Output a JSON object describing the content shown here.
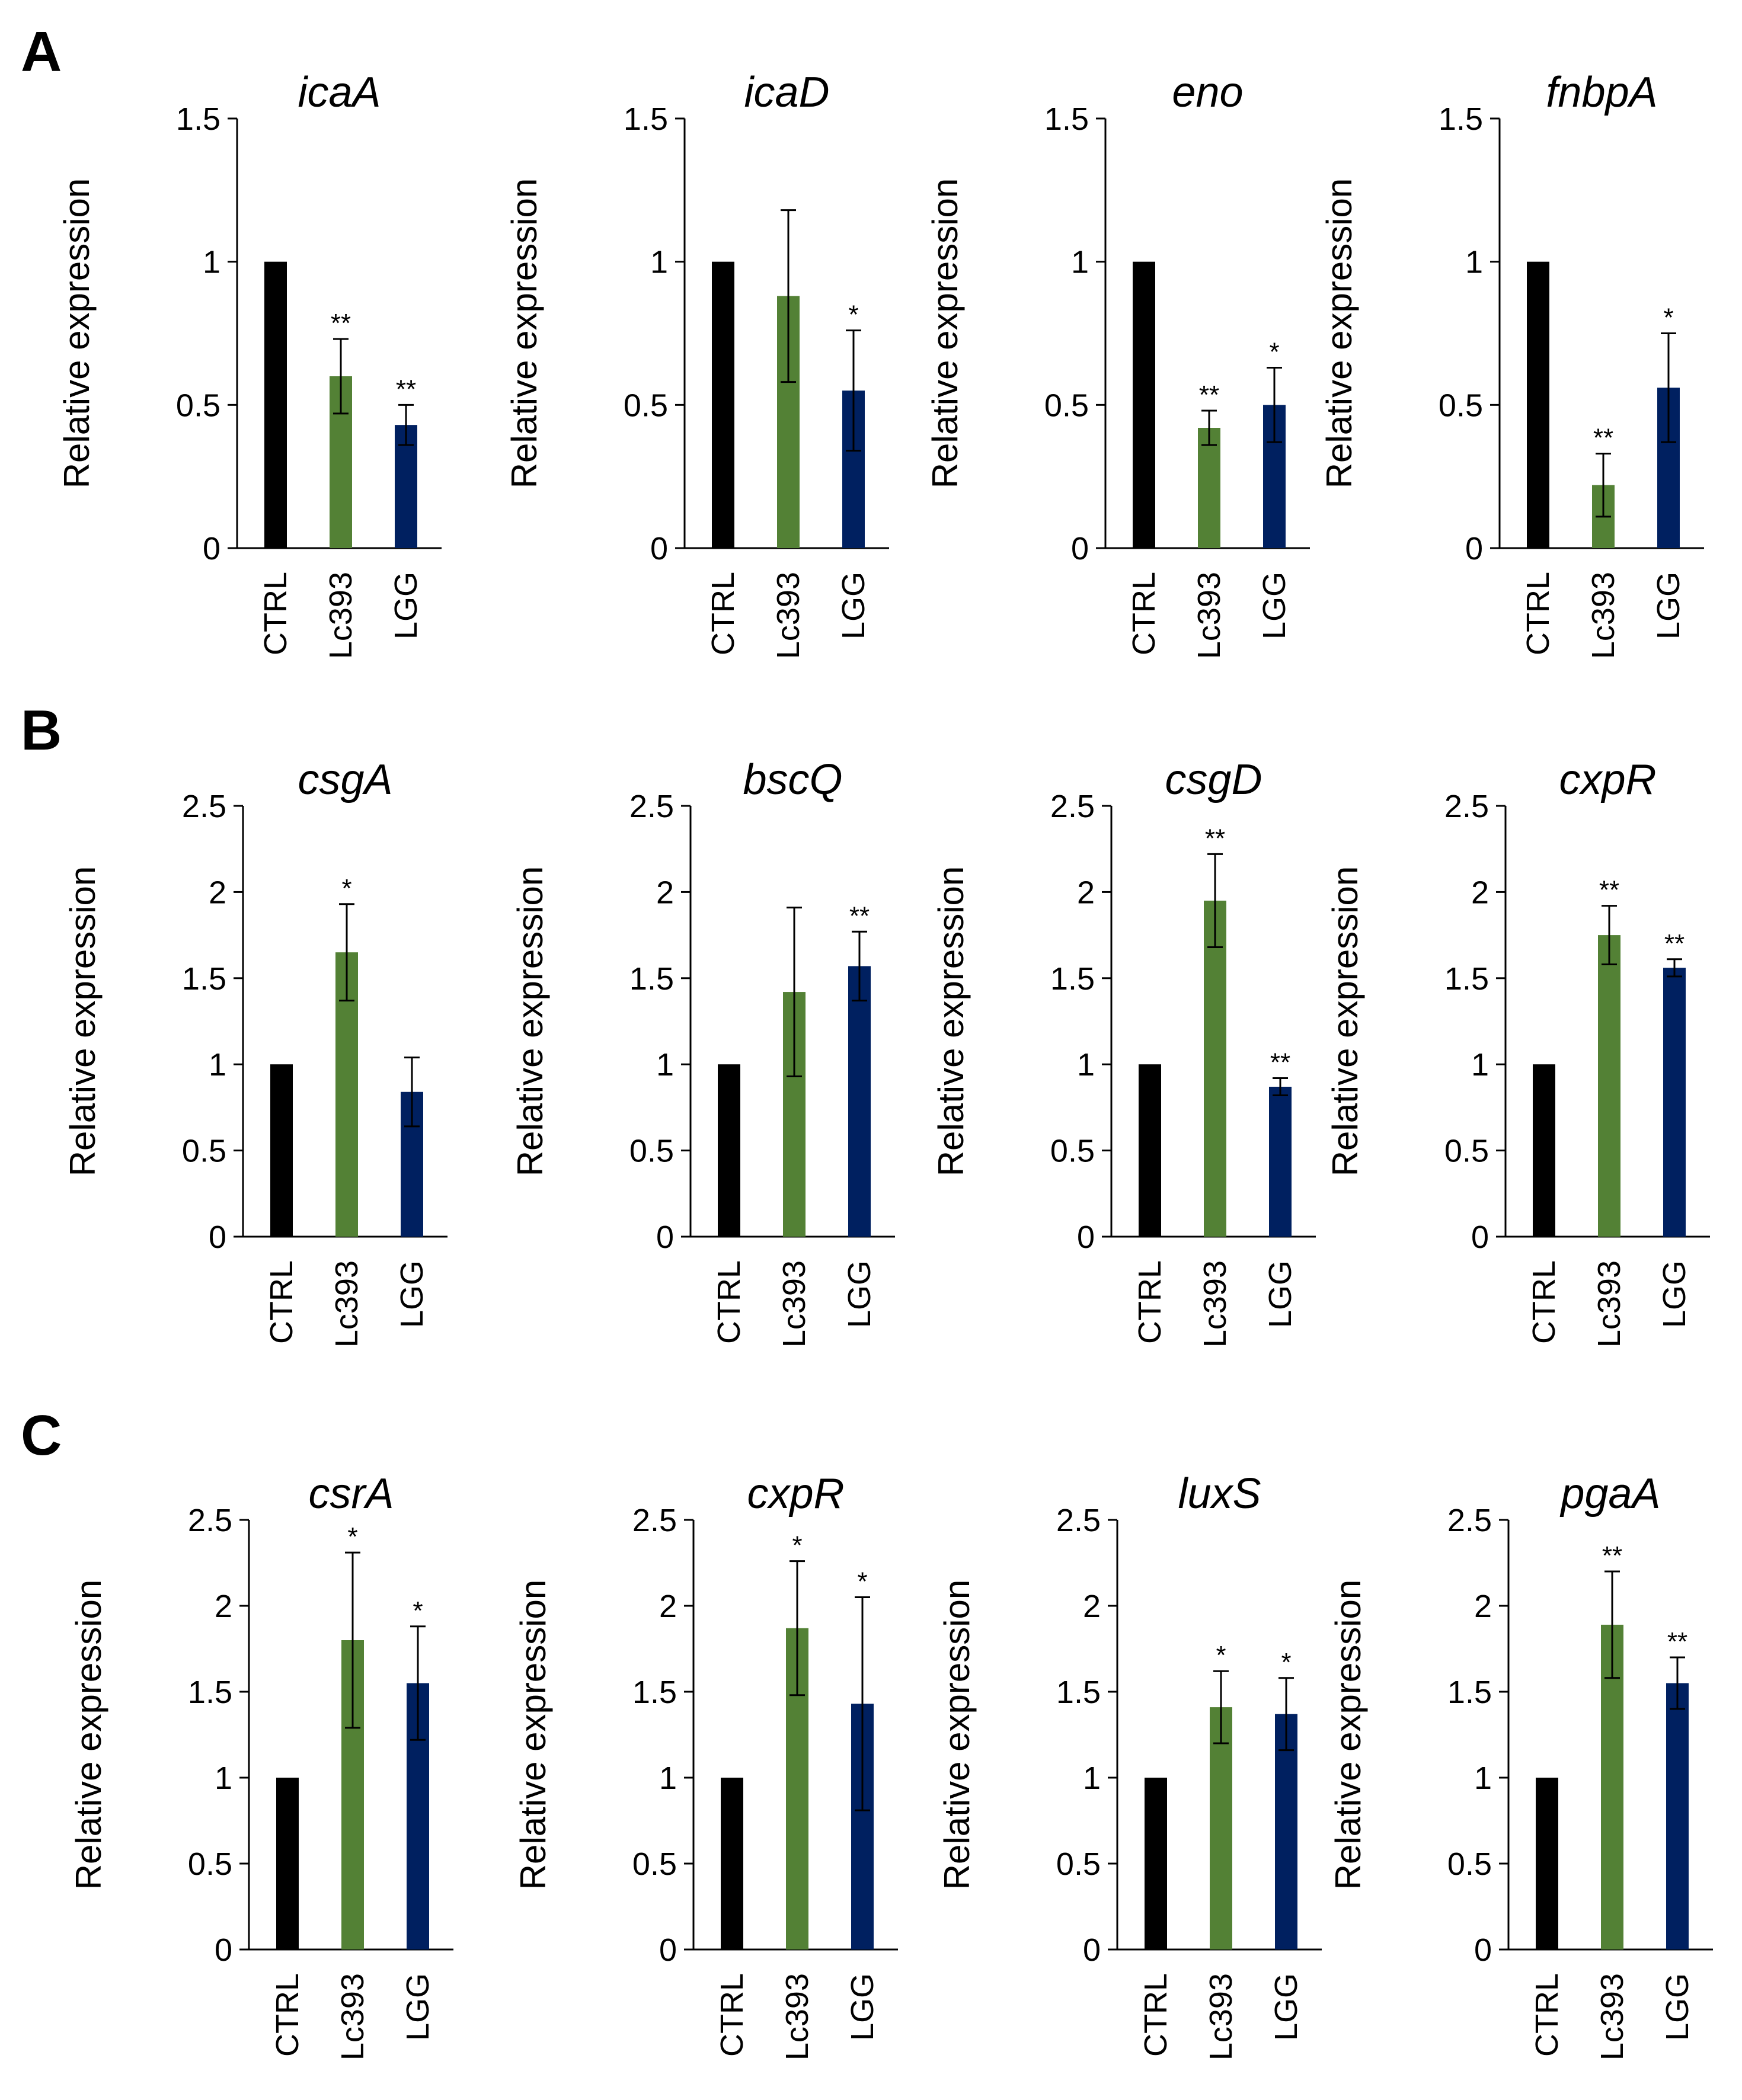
{
  "panels": [
    {
      "letter": "A"
    },
    {
      "letter": "B"
    },
    {
      "letter": "C"
    }
  ],
  "colors": {
    "CTRL": "#000000",
    "Lc393": "#538135",
    "LGG": "#002060"
  },
  "chart_data": [
    {
      "type": "bar",
      "panel": "A",
      "title": "icaA",
      "ylabel": "Relative expression",
      "ylim": [
        0,
        1.5
      ],
      "yticks": [
        "0",
        "0.5",
        "1",
        "1.5"
      ],
      "categories": [
        "CTRL",
        "Lc393",
        "LGG"
      ],
      "values": [
        1,
        0.6,
        0.43
      ],
      "errors": [
        0,
        0.13,
        0.07
      ],
      "significance": [
        "",
        "**",
        "**"
      ]
    },
    {
      "type": "bar",
      "panel": "A",
      "title": "icaD",
      "ylabel": "Relative expression",
      "ylim": [
        0,
        1.5
      ],
      "yticks": [
        "0",
        "0.5",
        "1",
        "1.5"
      ],
      "categories": [
        "CTRL",
        "Lc393",
        "LGG"
      ],
      "values": [
        1,
        0.88,
        0.55
      ],
      "errors": [
        0,
        0.3,
        0.21
      ],
      "significance": [
        "",
        "",
        "*"
      ]
    },
    {
      "type": "bar",
      "panel": "A",
      "title": "eno",
      "ylabel": "Relative expression",
      "ylim": [
        0,
        1.5
      ],
      "yticks": [
        "0",
        "0.5",
        "1",
        "1.5"
      ],
      "categories": [
        "CTRL",
        "Lc393",
        "LGG"
      ],
      "values": [
        1,
        0.42,
        0.5
      ],
      "errors": [
        0,
        0.06,
        0.13
      ],
      "significance": [
        "",
        "**",
        "*"
      ]
    },
    {
      "type": "bar",
      "panel": "A",
      "title": "fnbpA",
      "ylabel": "Relative expression",
      "ylim": [
        0,
        1.5
      ],
      "yticks": [
        "0",
        "0.5",
        "1",
        "1.5"
      ],
      "categories": [
        "CTRL",
        "Lc393",
        "LGG"
      ],
      "values": [
        1,
        0.22,
        0.56
      ],
      "errors": [
        0,
        0.11,
        0.19
      ],
      "significance": [
        "",
        "**",
        "*"
      ]
    },
    {
      "type": "bar",
      "panel": "B",
      "title": "csgA",
      "ylabel": "Relative expression",
      "ylim": [
        0,
        2.5
      ],
      "yticks": [
        "0",
        "0.5",
        "1",
        "1.5",
        "2",
        "2.5"
      ],
      "categories": [
        "CTRL",
        "Lc393",
        "LGG"
      ],
      "values": [
        1,
        1.65,
        0.84
      ],
      "errors": [
        0,
        0.28,
        0.2
      ],
      "significance": [
        "",
        "*",
        ""
      ]
    },
    {
      "type": "bar",
      "panel": "B",
      "title": "bscQ",
      "ylabel": "Relative expression",
      "ylim": [
        0,
        2.5
      ],
      "yticks": [
        "0",
        "0.5",
        "1",
        "1.5",
        "2",
        "2.5"
      ],
      "categories": [
        "CTRL",
        "Lc393",
        "LGG"
      ],
      "values": [
        1,
        1.42,
        1.57
      ],
      "errors": [
        0,
        0.49,
        0.2
      ],
      "significance": [
        "",
        "",
        "**"
      ]
    },
    {
      "type": "bar",
      "panel": "B",
      "title": "csgD",
      "ylabel": "Relative expression",
      "ylim": [
        0,
        2.5
      ],
      "yticks": [
        "0",
        "0.5",
        "1",
        "1.5",
        "2",
        "2.5"
      ],
      "categories": [
        "CTRL",
        "Lc393",
        "LGG"
      ],
      "values": [
        1,
        1.95,
        0.87
      ],
      "errors": [
        0,
        0.27,
        0.05
      ],
      "significance": [
        "",
        "**",
        "**"
      ]
    },
    {
      "type": "bar",
      "panel": "B",
      "title": "cxpR",
      "ylabel": "Relative expression",
      "ylim": [
        0,
        2.5
      ],
      "yticks": [
        "0",
        "0.5",
        "1",
        "1.5",
        "2",
        "2.5"
      ],
      "categories": [
        "CTRL",
        "Lc393",
        "LGG"
      ],
      "values": [
        1,
        1.75,
        1.56
      ],
      "errors": [
        0,
        0.17,
        0.05
      ],
      "significance": [
        "",
        "**",
        "**"
      ]
    },
    {
      "type": "bar",
      "panel": "C",
      "title": "csrA",
      "ylabel": "Relative expression",
      "ylim": [
        0,
        2.5
      ],
      "yticks": [
        "0",
        "0.5",
        "1",
        "1.5",
        "2",
        "2.5"
      ],
      "categories": [
        "CTRL",
        "Lc393",
        "LGG"
      ],
      "values": [
        1,
        1.8,
        1.55
      ],
      "errors": [
        0,
        0.51,
        0.33
      ],
      "significance": [
        "",
        "*",
        "*"
      ]
    },
    {
      "type": "bar",
      "panel": "C",
      "title": "cxpR",
      "ylabel": "Relative expression",
      "ylim": [
        0,
        2.5
      ],
      "yticks": [
        "0",
        "0.5",
        "1",
        "1.5",
        "2",
        "2.5"
      ],
      "categories": [
        "CTRL",
        "Lc393",
        "LGG"
      ],
      "values": [
        1,
        1.87,
        1.43
      ],
      "errors": [
        0,
        0.39,
        0.62
      ],
      "significance": [
        "",
        "*",
        "*"
      ]
    },
    {
      "type": "bar",
      "panel": "C",
      "title": "luxS",
      "ylabel": "Relative expression",
      "ylim": [
        0,
        2.5
      ],
      "yticks": [
        "0",
        "0.5",
        "1",
        "1.5",
        "2",
        "2.5"
      ],
      "categories": [
        "CTRL",
        "Lc393",
        "LGG"
      ],
      "values": [
        1,
        1.41,
        1.37
      ],
      "errors": [
        0,
        0.21,
        0.21
      ],
      "significance": [
        "",
        "*",
        "*"
      ]
    },
    {
      "type": "bar",
      "panel": "C",
      "title": "pgaA",
      "ylabel": "Relative expression",
      "ylim": [
        0,
        2.5
      ],
      "yticks": [
        "0",
        "0.5",
        "1",
        "1.5",
        "2",
        "2.5"
      ],
      "categories": [
        "CTRL",
        "Lc393",
        "LGG"
      ],
      "values": [
        1,
        1.89,
        1.55
      ],
      "errors": [
        0,
        0.31,
        0.15
      ],
      "significance": [
        "",
        "**",
        "**"
      ]
    }
  ]
}
